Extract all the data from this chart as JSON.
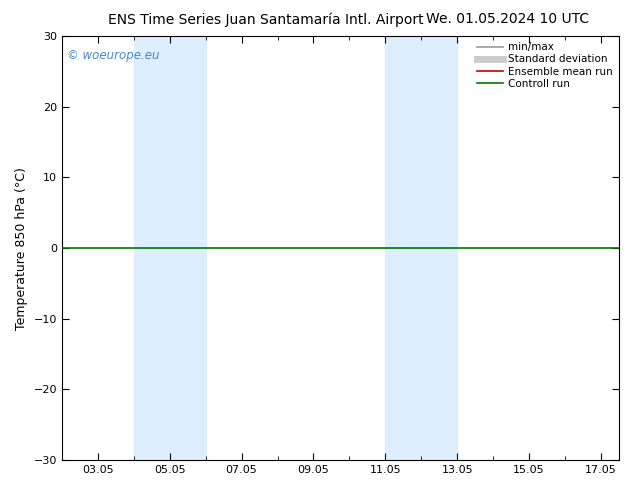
{
  "title_left": "ENS Time Series Juan Santamaría Intl. Airport",
  "title_right": "We. 01.05.2024 10 UTC",
  "ylabel": "Temperature 850 hPa (°C)",
  "ylim": [
    -30,
    30
  ],
  "yticks": [
    -30,
    -20,
    -10,
    0,
    10,
    20,
    30
  ],
  "xtick_labels": [
    "03.05",
    "05.05",
    "07.05",
    "09.05",
    "11.05",
    "13.05",
    "15.05",
    "17.05"
  ],
  "xtick_positions": [
    3,
    5,
    7,
    9,
    11,
    13,
    15,
    17
  ],
  "xminor_positions": [
    2,
    3,
    4,
    5,
    6,
    7,
    8,
    9,
    10,
    11,
    12,
    13,
    14,
    15,
    16,
    17
  ],
  "shaded_bands": [
    {
      "xmin": 4.0,
      "xmax": 6.0,
      "color": "#ddeeff"
    },
    {
      "xmin": 11.0,
      "xmax": 13.0,
      "color": "#ddeeff"
    }
  ],
  "watermark": "© woeurope.eu",
  "watermark_color": "#4488cc",
  "legend_items": [
    {
      "label": "min/max",
      "color": "#999999",
      "lw": 1.2,
      "style": "-"
    },
    {
      "label": "Standard deviation",
      "color": "#cccccc",
      "lw": 5,
      "style": "-"
    },
    {
      "label": "Ensemble mean run",
      "color": "#cc0000",
      "lw": 1.2,
      "style": "-"
    },
    {
      "label": "Controll run",
      "color": "#007700",
      "lw": 1.2,
      "style": "-"
    }
  ],
  "control_run_y": 0,
  "control_run_color": "#007700",
  "control_run_lw": 1.2,
  "background_color": "#ffffff",
  "plot_bg_color": "#ffffff",
  "hline_color": "#007700",
  "title_fontsize": 10,
  "ylabel_fontsize": 9,
  "tick_fontsize": 8,
  "legend_fontsize": 7.5,
  "xmin": 2,
  "xmax": 17.5
}
